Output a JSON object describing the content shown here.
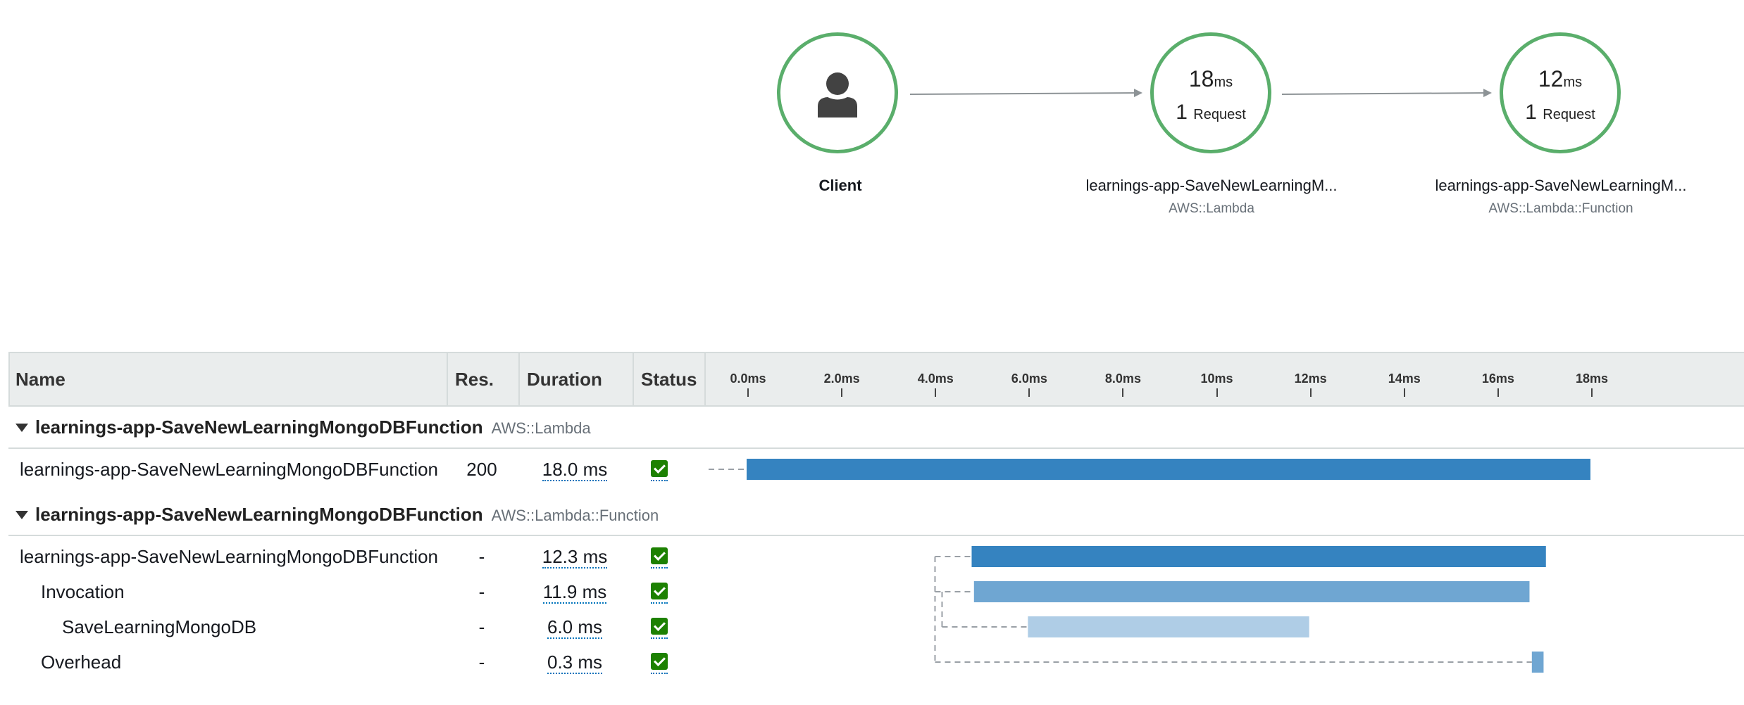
{
  "map": {
    "nodes": [
      {
        "id": "client",
        "title": "Client",
        "subtitle": "",
        "icon": "user-icon"
      },
      {
        "id": "lambda",
        "ms": "18",
        "ms_unit": "ms",
        "requests": "1",
        "requests_unit": "Request",
        "title": "learnings-app-SaveNewLearningM...",
        "subtitle": "AWS::Lambda"
      },
      {
        "id": "function",
        "ms": "12",
        "ms_unit": "ms",
        "requests": "1",
        "requests_unit": "Request",
        "title": "learnings-app-SaveNewLearningM...",
        "subtitle": "AWS::Lambda::Function"
      }
    ]
  },
  "table": {
    "columns": {
      "name": "Name",
      "res": "Res.",
      "duration": "Duration",
      "status": "Status"
    },
    "axis_ticks": [
      "0.0ms",
      "2.0ms",
      "4.0ms",
      "6.0ms",
      "8.0ms",
      "10ms",
      "12ms",
      "14ms",
      "16ms",
      "18ms"
    ],
    "axis_max_ms": 18,
    "groups": [
      {
        "name": "learnings-app-SaveNewLearningMongoDBFunction",
        "type": "AWS::Lambda",
        "rows": [
          {
            "name": "learnings-app-SaveNewLearningMongoDBFunction",
            "res": "200",
            "duration": "18.0 ms",
            "status": "ok",
            "start_ms": 0.0,
            "end_ms": 18.0,
            "depth": 0,
            "color": "#3583c0"
          }
        ]
      },
      {
        "name": "learnings-app-SaveNewLearningMongoDBFunction",
        "type": "AWS::Lambda::Function",
        "rows": [
          {
            "name": "learnings-app-SaveNewLearningMongoDBFunction",
            "res": "-",
            "duration": "12.3 ms",
            "status": "ok",
            "start_ms": 4.8,
            "end_ms": 17.05,
            "depth": 0,
            "color": "#3583c0"
          },
          {
            "name": "Invocation",
            "res": "-",
            "duration": "11.9 ms",
            "status": "ok",
            "start_ms": 4.85,
            "end_ms": 16.7,
            "depth": 1,
            "color": "#6fa6d2"
          },
          {
            "name": "SaveLearningMongoDB",
            "res": "-",
            "duration": "6.0 ms",
            "status": "ok",
            "start_ms": 6.0,
            "end_ms": 12.0,
            "depth": 2,
            "color": "#afcde6"
          },
          {
            "name": "Overhead",
            "res": "-",
            "duration": "0.3 ms",
            "status": "ok",
            "start_ms": 16.75,
            "end_ms": 17.0,
            "depth": 1,
            "color": "#6fa6d2"
          }
        ]
      }
    ]
  }
}
